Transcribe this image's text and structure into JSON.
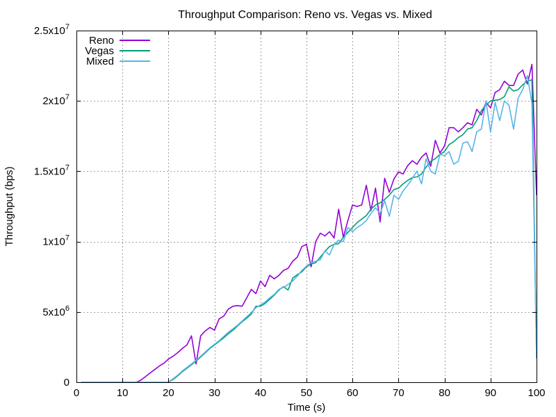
{
  "chart_data": {
    "type": "line",
    "title": "Throughput Comparison: Reno vs. Vegas vs. Mixed",
    "xlabel": "Time (s)",
    "ylabel": "Throughput (bps)",
    "xlim": [
      0,
      100
    ],
    "ylim": [
      0,
      25000000
    ],
    "x_ticks": [
      0,
      10,
      20,
      30,
      40,
      50,
      60,
      70,
      80,
      90,
      100
    ],
    "y_ticks": [
      {
        "value": 0,
        "mant": "0",
        "exp": ""
      },
      {
        "value": 5000000,
        "mant": "5x10",
        "exp": "6"
      },
      {
        "value": 10000000,
        "mant": "1x10",
        "exp": "7"
      },
      {
        "value": 15000000,
        "mant": "1.5x10",
        "exp": "7"
      },
      {
        "value": 20000000,
        "mant": "2x10",
        "exp": "7"
      },
      {
        "value": 25000000,
        "mant": "2.5x10",
        "exp": "7"
      }
    ],
    "grid": true,
    "legend_position": "top-left",
    "series": [
      {
        "name": "Reno",
        "color": "#9400d3",
        "points": [
          [
            1,
            0
          ],
          [
            13,
            0
          ],
          [
            14,
            150000
          ],
          [
            15,
            400000
          ],
          [
            16,
            650000
          ],
          [
            17,
            900000
          ],
          [
            18,
            1150000
          ],
          [
            19,
            1350000
          ],
          [
            20,
            1650000
          ],
          [
            21,
            1850000
          ],
          [
            22,
            2100000
          ],
          [
            23,
            2400000
          ],
          [
            24,
            2650000
          ],
          [
            25,
            3300000
          ],
          [
            26,
            1300000
          ],
          [
            27,
            3300000
          ],
          [
            28,
            3650000
          ],
          [
            29,
            3900000
          ],
          [
            30,
            3700000
          ],
          [
            31,
            4500000
          ],
          [
            32,
            4700000
          ],
          [
            33,
            5200000
          ],
          [
            34,
            5400000
          ],
          [
            35,
            5450000
          ],
          [
            36,
            5400000
          ],
          [
            37,
            6000000
          ],
          [
            38,
            6600000
          ],
          [
            39,
            6300000
          ],
          [
            40,
            7200000
          ],
          [
            41,
            6800000
          ],
          [
            42,
            7600000
          ],
          [
            43,
            7350000
          ],
          [
            44,
            7600000
          ],
          [
            45,
            7950000
          ],
          [
            46,
            8100000
          ],
          [
            47,
            8600000
          ],
          [
            48,
            8900000
          ],
          [
            49,
            9650000
          ],
          [
            50,
            9800000
          ],
          [
            51,
            8200000
          ],
          [
            52,
            10000000
          ],
          [
            53,
            10600000
          ],
          [
            54,
            10400000
          ],
          [
            55,
            10700000
          ],
          [
            56,
            10250000
          ],
          [
            57,
            12300000
          ],
          [
            58,
            10300000
          ],
          [
            59,
            11500000
          ],
          [
            60,
            12600000
          ],
          [
            61,
            12500000
          ],
          [
            62,
            12600000
          ],
          [
            63,
            14000000
          ],
          [
            64,
            12200000
          ],
          [
            65,
            13800000
          ],
          [
            66,
            11400000
          ],
          [
            67,
            14500000
          ],
          [
            68,
            13500000
          ],
          [
            69,
            14450000
          ],
          [
            70,
            14950000
          ],
          [
            71,
            14800000
          ],
          [
            72,
            15400000
          ],
          [
            73,
            15750000
          ],
          [
            74,
            15500000
          ],
          [
            75,
            16000000
          ],
          [
            76,
            16300000
          ],
          [
            77,
            15350000
          ],
          [
            78,
            17200000
          ],
          [
            79,
            16300000
          ],
          [
            80,
            16800000
          ],
          [
            81,
            18100000
          ],
          [
            82,
            18100000
          ],
          [
            83,
            17800000
          ],
          [
            84,
            18100000
          ],
          [
            85,
            18450000
          ],
          [
            86,
            18300000
          ],
          [
            87,
            19400000
          ],
          [
            88,
            19000000
          ],
          [
            89,
            19900000
          ],
          [
            90,
            19500000
          ],
          [
            91,
            20600000
          ],
          [
            92,
            20800000
          ],
          [
            93,
            21400000
          ],
          [
            94,
            21100000
          ],
          [
            95,
            21100000
          ],
          [
            96,
            21900000
          ],
          [
            97,
            22200000
          ],
          [
            98,
            21200000
          ],
          [
            99,
            22600000
          ],
          [
            100,
            13300000
          ]
        ]
      },
      {
        "name": "Vegas",
        "color": "#009e73",
        "points": [
          [
            1,
            0
          ],
          [
            20,
            0
          ],
          [
            21,
            200000
          ],
          [
            22,
            450000
          ],
          [
            23,
            750000
          ],
          [
            24,
            1000000
          ],
          [
            25,
            1250000
          ],
          [
            26,
            1500000
          ],
          [
            27,
            1800000
          ],
          [
            28,
            2100000
          ],
          [
            29,
            2400000
          ],
          [
            30,
            2650000
          ],
          [
            31,
            2900000
          ],
          [
            32,
            3150000
          ],
          [
            33,
            3450000
          ],
          [
            34,
            3700000
          ],
          [
            35,
            4000000
          ],
          [
            36,
            4300000
          ],
          [
            37,
            4550000
          ],
          [
            38,
            4850000
          ],
          [
            39,
            5400000
          ],
          [
            40,
            5400000
          ],
          [
            41,
            5600000
          ],
          [
            42,
            5900000
          ],
          [
            43,
            6200000
          ],
          [
            44,
            6550000
          ],
          [
            45,
            6800000
          ],
          [
            46,
            6550000
          ],
          [
            47,
            7400000
          ],
          [
            48,
            7650000
          ],
          [
            49,
            7850000
          ],
          [
            50,
            8200000
          ],
          [
            51,
            8400000
          ],
          [
            52,
            8500000
          ],
          [
            53,
            8900000
          ],
          [
            54,
            9300000
          ],
          [
            55,
            9650000
          ],
          [
            56,
            9800000
          ],
          [
            57,
            9850000
          ],
          [
            58,
            10300000
          ],
          [
            59,
            10650000
          ],
          [
            60,
            11000000
          ],
          [
            61,
            11350000
          ],
          [
            62,
            11600000
          ],
          [
            63,
            11850000
          ],
          [
            64,
            12300000
          ],
          [
            65,
            12600000
          ],
          [
            66,
            12750000
          ],
          [
            67,
            13000000
          ],
          [
            68,
            13300000
          ],
          [
            69,
            13700000
          ],
          [
            70,
            13800000
          ],
          [
            71,
            14100000
          ],
          [
            72,
            14350000
          ],
          [
            73,
            14550000
          ],
          [
            74,
            14600000
          ],
          [
            75,
            14800000
          ],
          [
            76,
            15300000
          ],
          [
            77,
            15700000
          ],
          [
            78,
            15900000
          ],
          [
            79,
            16200000
          ],
          [
            80,
            16400000
          ],
          [
            81,
            16900000
          ],
          [
            82,
            17100000
          ],
          [
            83,
            17400000
          ],
          [
            84,
            17600000
          ],
          [
            85,
            18000000
          ],
          [
            86,
            18100000
          ],
          [
            87,
            18600000
          ],
          [
            88,
            19300000
          ],
          [
            89,
            19700000
          ],
          [
            90,
            20000000
          ],
          [
            91,
            20050000
          ],
          [
            92,
            20100000
          ],
          [
            93,
            20300000
          ],
          [
            94,
            21000000
          ],
          [
            95,
            20700000
          ],
          [
            96,
            20800000
          ],
          [
            97,
            21150000
          ],
          [
            98,
            21400000
          ],
          [
            99,
            21500000
          ],
          [
            100,
            1700000
          ]
        ]
      },
      {
        "name": "Mixed",
        "color": "#56b4e9",
        "points": [
          [
            1,
            0
          ],
          [
            20,
            0
          ],
          [
            21,
            250000
          ],
          [
            22,
            500000
          ],
          [
            23,
            800000
          ],
          [
            24,
            1050000
          ],
          [
            25,
            1300000
          ],
          [
            26,
            1550000
          ],
          [
            27,
            1850000
          ],
          [
            28,
            2150000
          ],
          [
            29,
            2450000
          ],
          [
            30,
            2700000
          ],
          [
            31,
            2950000
          ],
          [
            32,
            3250000
          ],
          [
            33,
            3550000
          ],
          [
            34,
            3800000
          ],
          [
            35,
            4050000
          ],
          [
            36,
            4350000
          ],
          [
            37,
            4650000
          ],
          [
            38,
            4950000
          ],
          [
            39,
            5300000
          ],
          [
            40,
            5500000
          ],
          [
            41,
            5700000
          ],
          [
            42,
            6000000
          ],
          [
            43,
            6250000
          ],
          [
            44,
            6600000
          ],
          [
            45,
            6750000
          ],
          [
            46,
            6950000
          ],
          [
            47,
            7200000
          ],
          [
            48,
            7550000
          ],
          [
            49,
            7950000
          ],
          [
            50,
            8250000
          ],
          [
            51,
            8500000
          ],
          [
            52,
            8600000
          ],
          [
            53,
            8700000
          ],
          [
            54,
            9350000
          ],
          [
            55,
            9050000
          ],
          [
            56,
            9800000
          ],
          [
            57,
            10100000
          ],
          [
            58,
            10000000
          ],
          [
            59,
            11000000
          ],
          [
            60,
            10700000
          ],
          [
            61,
            11000000
          ],
          [
            62,
            11200000
          ],
          [
            63,
            11500000
          ],
          [
            64,
            12000000
          ],
          [
            65,
            12400000
          ],
          [
            66,
            12000000
          ],
          [
            67,
            12900000
          ],
          [
            68,
            11800000
          ],
          [
            69,
            13300000
          ],
          [
            70,
            13000000
          ],
          [
            71,
            13600000
          ],
          [
            72,
            14000000
          ],
          [
            73,
            14500000
          ],
          [
            74,
            15000000
          ],
          [
            75,
            14100000
          ],
          [
            76,
            15900000
          ],
          [
            77,
            15000000
          ],
          [
            78,
            14800000
          ],
          [
            79,
            16200000
          ],
          [
            80,
            16100000
          ],
          [
            81,
            16400000
          ],
          [
            82,
            15500000
          ],
          [
            83,
            15700000
          ],
          [
            84,
            17000000
          ],
          [
            85,
            17100000
          ],
          [
            86,
            16400000
          ],
          [
            87,
            17800000
          ],
          [
            88,
            18000000
          ],
          [
            89,
            20000000
          ],
          [
            90,
            17800000
          ],
          [
            91,
            19900000
          ],
          [
            92,
            18600000
          ],
          [
            93,
            20000000
          ],
          [
            94,
            19700000
          ],
          [
            95,
            18000000
          ],
          [
            96,
            20200000
          ],
          [
            97,
            20800000
          ],
          [
            98,
            21800000
          ],
          [
            99,
            19800000
          ],
          [
            100,
            1700000
          ]
        ]
      }
    ]
  }
}
